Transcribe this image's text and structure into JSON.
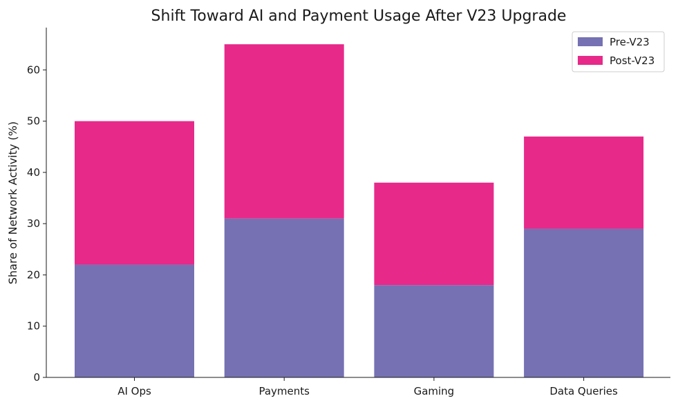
{
  "chart_data": {
    "type": "bar",
    "stacked": true,
    "title": "Shift Toward AI and Payment Usage After V23 Upgrade",
    "xlabel": "",
    "ylabel": "Share of Network Activity (%)",
    "categories": [
      "AI Ops",
      "Payments",
      "Gaming",
      "Data Queries"
    ],
    "series": [
      {
        "name": "Pre-V23",
        "values": [
          22,
          31,
          18,
          29
        ],
        "color": "#7571b3"
      },
      {
        "name": "Post-V23",
        "values": [
          28,
          34,
          20,
          18
        ],
        "color": "#e7298a"
      }
    ],
    "ylim": [
      0,
      68.25
    ],
    "yticks": [
      0,
      10,
      20,
      30,
      40,
      50,
      60
    ],
    "grid": false,
    "legend_position": "top-right"
  }
}
